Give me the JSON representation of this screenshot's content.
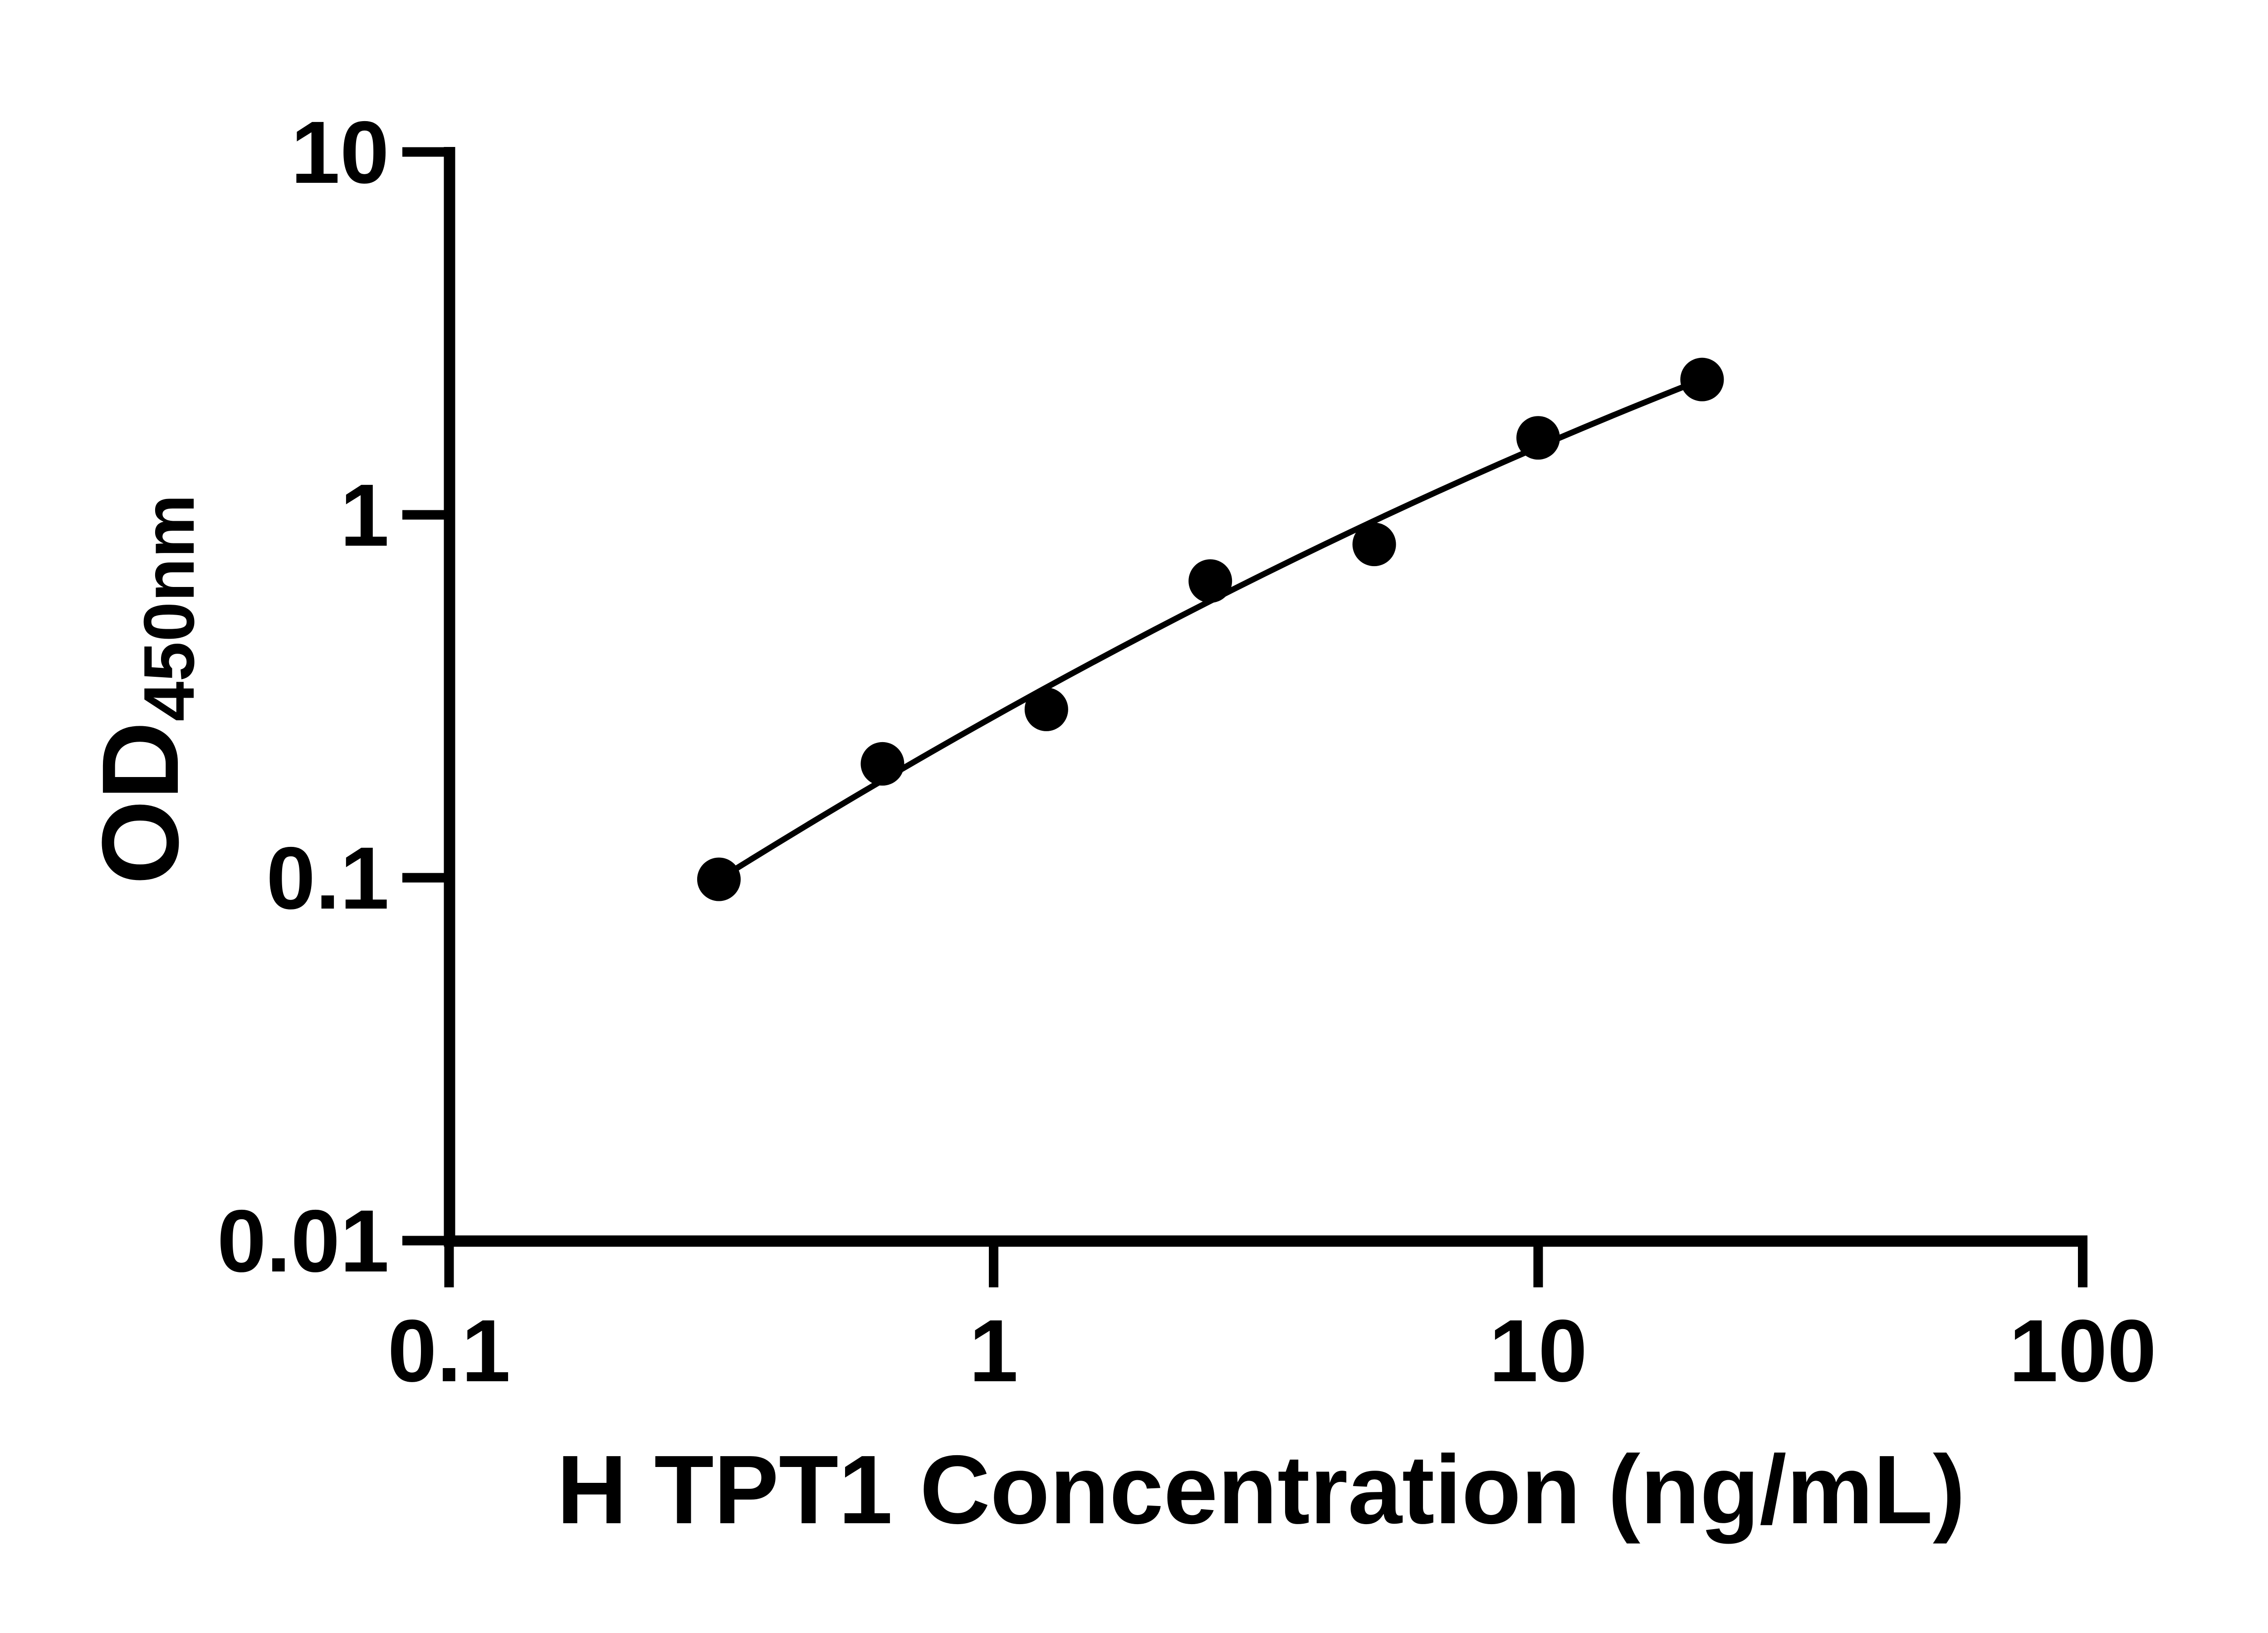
{
  "figure": {
    "background_color": "#ffffff",
    "ink_color": "#000000"
  },
  "chart_data": {
    "type": "scatter",
    "title": "",
    "xlabel": "H TPT1 Concentration (ng/mL)",
    "ylabel_main": "OD",
    "ylabel_sub": "450nm",
    "x_scale": "log",
    "y_scale": "log",
    "xlim": [
      0.1,
      100
    ],
    "ylim": [
      0.01,
      10
    ],
    "grid": false,
    "legend": null,
    "x_ticks": [
      {
        "value": 0.1,
        "label": "0.1"
      },
      {
        "value": 1,
        "label": "1"
      },
      {
        "value": 10,
        "label": "10"
      },
      {
        "value": 100,
        "label": "100"
      }
    ],
    "y_ticks": [
      {
        "value": 10,
        "label": "10"
      },
      {
        "value": 1,
        "label": "1"
      },
      {
        "value": 0.1,
        "label": "0.1"
      },
      {
        "value": 0.01,
        "label": "0.01"
      }
    ],
    "series": [
      {
        "name": "standard-points",
        "marker": "filled-circle",
        "color": "#000000",
        "points": [
          {
            "x": 0.313,
            "od": 0.099
          },
          {
            "x": 0.625,
            "od": 0.206
          },
          {
            "x": 1.25,
            "od": 0.291
          },
          {
            "x": 2.5,
            "od": 0.657
          },
          {
            "x": 5,
            "od": 0.829
          },
          {
            "x": 10,
            "od": 1.63
          },
          {
            "x": 20,
            "od": 2.36
          }
        ]
      }
    ],
    "fit_curve": {
      "name": "standard-curve-fit",
      "color": "#000000",
      "anchors": [
        {
          "x": 0.313,
          "od": 0.099
        },
        {
          "x": 5,
          "od": 0.963
        },
        {
          "x": 20,
          "od": 2.36
        }
      ]
    }
  }
}
